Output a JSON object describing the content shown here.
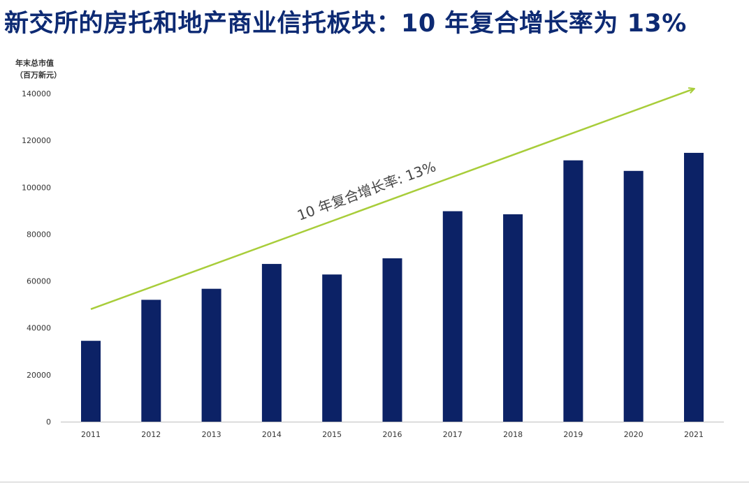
{
  "title": "新交所的房托和地产商业信托板块：10 年复合增长率为 13%",
  "chart_data": {
    "type": "bar",
    "ylabel_lines": [
      "年末总市值",
      "（百万新元）"
    ],
    "categories": [
      "2011",
      "2012",
      "2013",
      "2014",
      "2015",
      "2016",
      "2017",
      "2018",
      "2019",
      "2020",
      "2021"
    ],
    "values": [
      34500,
      52000,
      56700,
      67300,
      62800,
      69700,
      89800,
      88500,
      111500,
      107000,
      114700
    ],
    "ylim": [
      0,
      140000
    ],
    "yticks": [
      0,
      20000,
      40000,
      60000,
      80000,
      100000,
      120000,
      140000
    ],
    "ytick_labels": [
      "0",
      "20000",
      "40000",
      "60000",
      "80000",
      "100000",
      "120000",
      "140000"
    ],
    "grid": false,
    "annotation": {
      "text": "10 年复合增长率: 13%",
      "arrow_start": [
        "2011",
        48000
      ],
      "arrow_end": [
        "2021",
        142000
      ]
    },
    "colors": {
      "bar": "#0c2266",
      "arrow": "#a8cd3a",
      "axis": "#bfbfbf",
      "tick_text": "#333333",
      "annotation_text": "#444444"
    }
  }
}
